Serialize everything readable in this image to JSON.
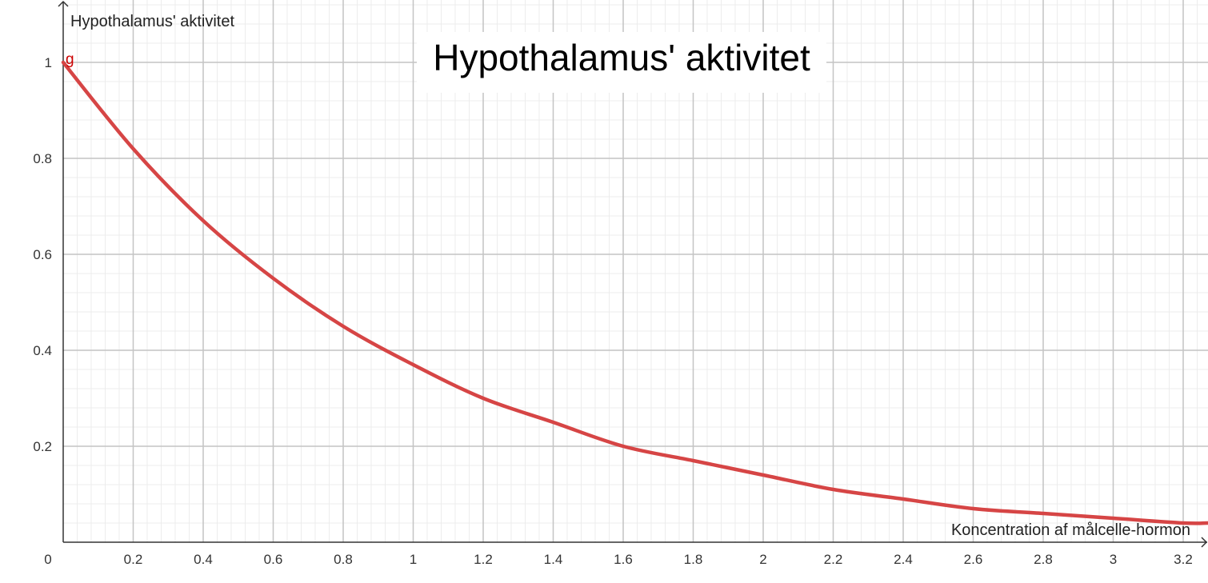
{
  "chart_data": {
    "type": "line",
    "title": "Hypothalamus' aktivitet",
    "xlabel": "Koncentration af målcelle-hormon",
    "ylabel": "Hypothalamus' aktivitet",
    "function_label": "g",
    "xlim": [
      0,
      3.27
    ],
    "ylim": [
      0,
      1.12
    ],
    "x_ticks": [
      "0.2",
      "0.4",
      "0.6",
      "0.8",
      "1",
      "1.2",
      "1.4",
      "1.6",
      "1.8",
      "2",
      "2.2",
      "2.4",
      "2.6",
      "2.8",
      "3",
      "3.2"
    ],
    "y_ticks": [
      "0.2",
      "0.4",
      "0.6",
      "0.8",
      "1"
    ],
    "origin_label": "0",
    "grid": true,
    "series": [
      {
        "color": "#d64545",
        "x": [
          0,
          0.2,
          0.4,
          0.6,
          0.8,
          1.0,
          1.2,
          1.4,
          1.6,
          1.8,
          2.0,
          2.2,
          2.4,
          2.6,
          2.8,
          3.0,
          3.2,
          3.27
        ],
        "y": [
          1.0,
          0.82,
          0.67,
          0.55,
          0.45,
          0.37,
          0.3,
          0.25,
          0.2,
          0.17,
          0.14,
          0.11,
          0.09,
          0.07,
          0.06,
          0.05,
          0.04,
          0.04
        ]
      }
    ]
  }
}
